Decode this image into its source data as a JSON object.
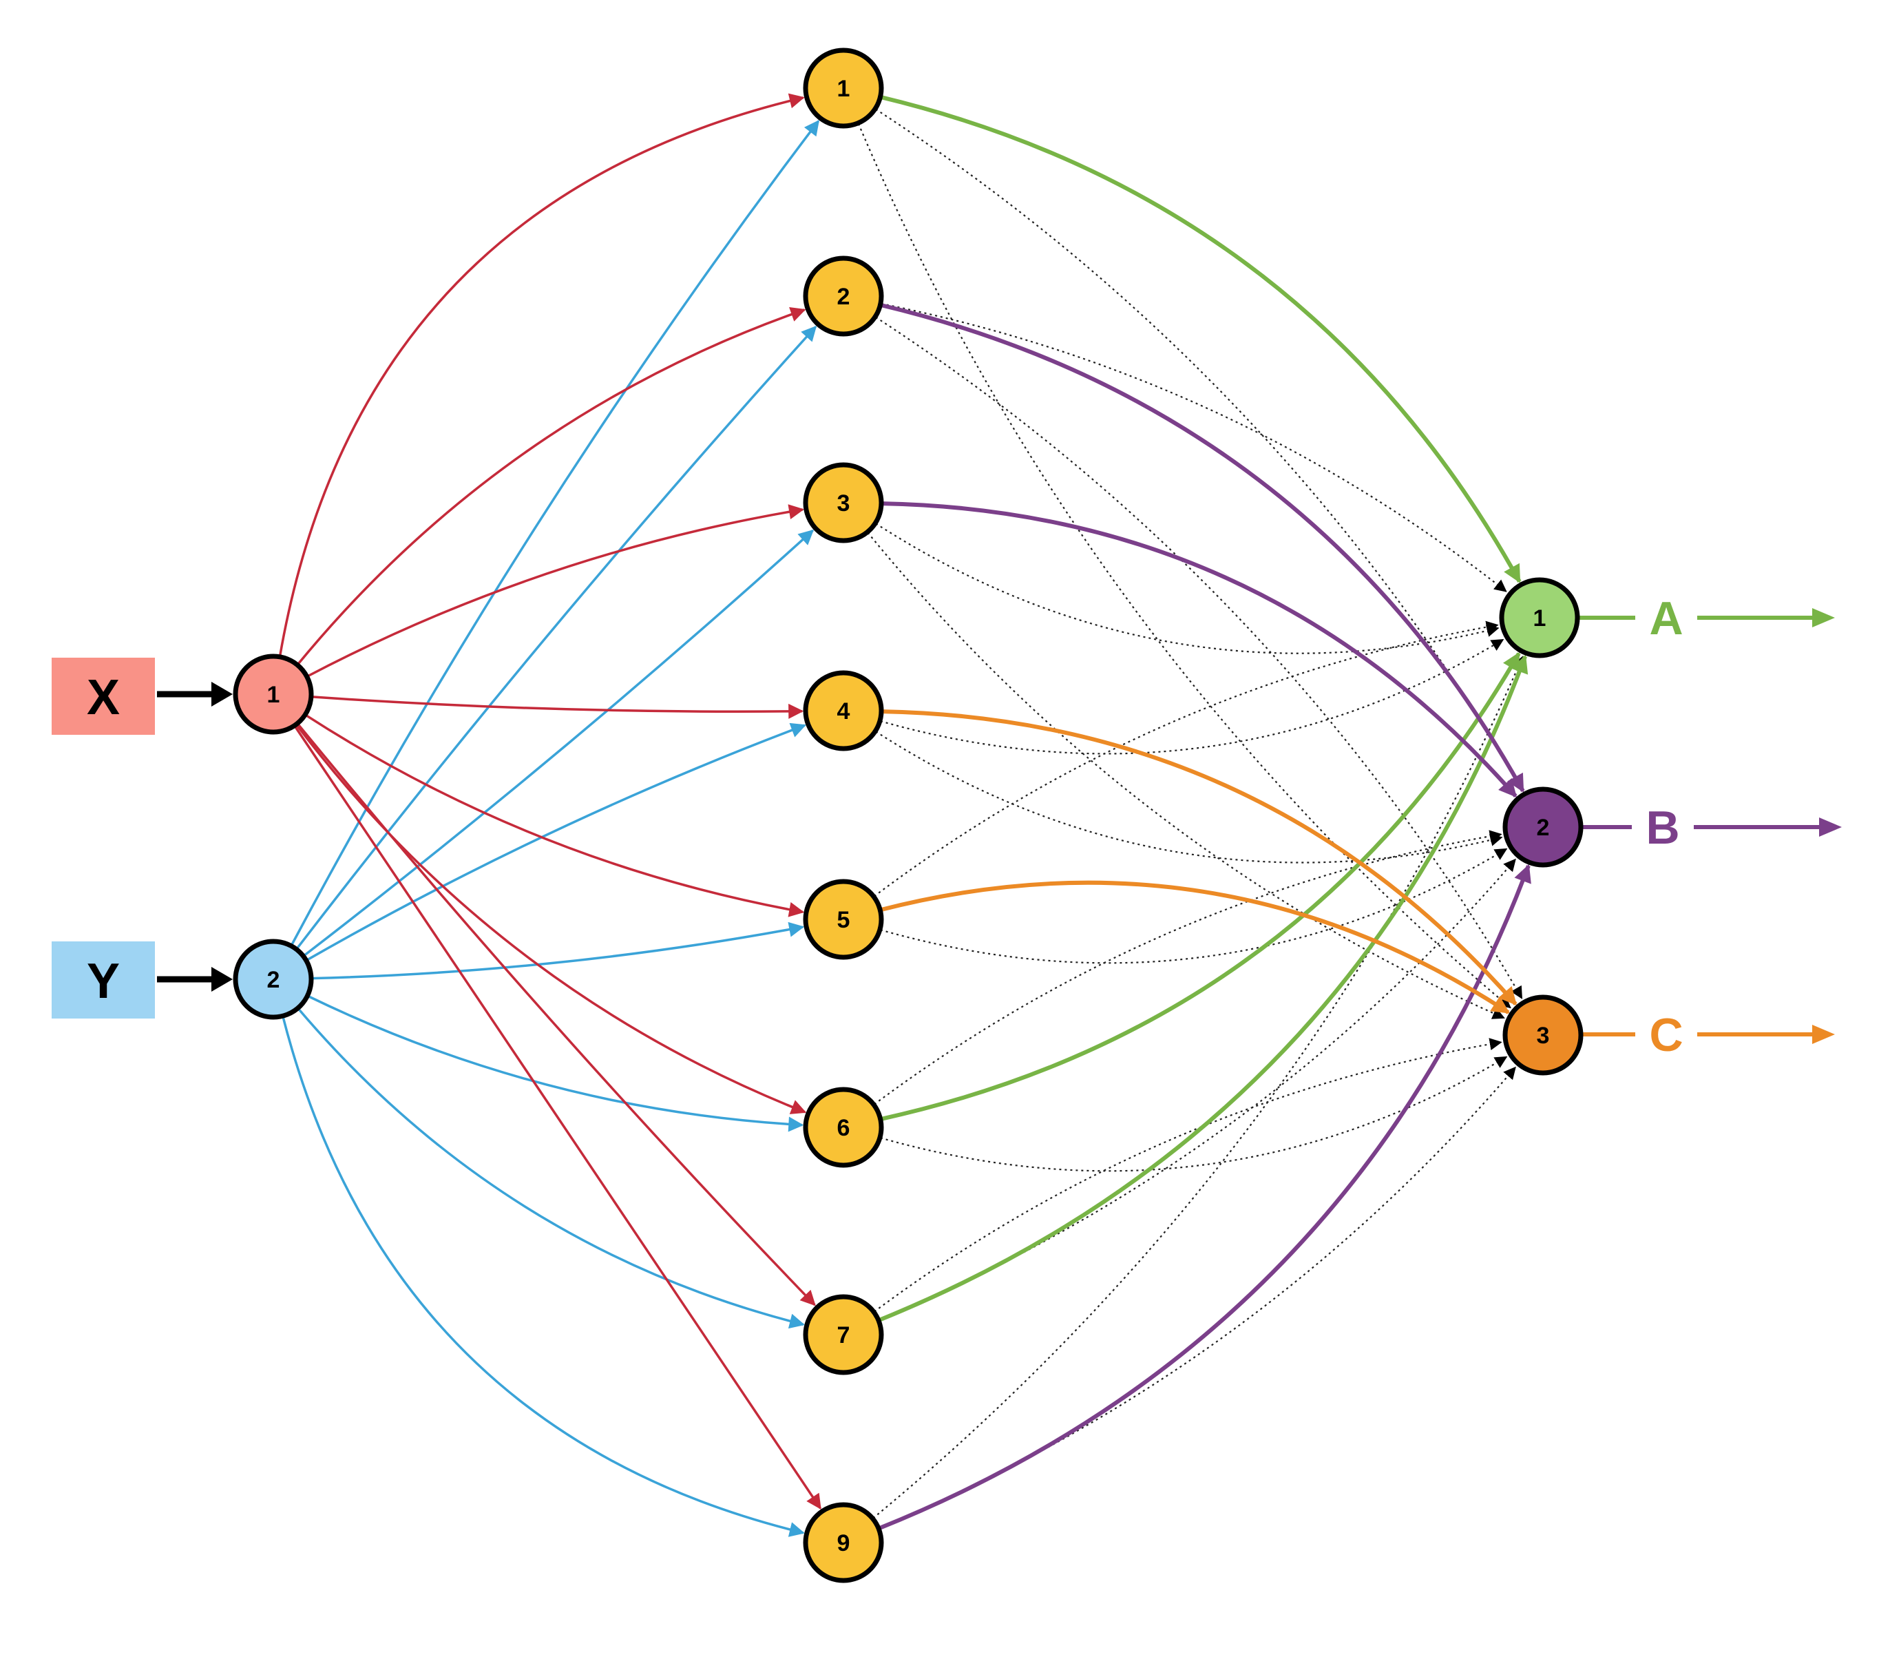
{
  "colors": {
    "input_x_fill": "#f99287",
    "input_y_fill": "#9ed4f3",
    "edge_x": "#c52a3a",
    "edge_y": "#3aa3d8",
    "hidden_fill": "#f9c235",
    "output_a": "#78b446",
    "output_a_fill": "#9dd574",
    "output_b": "#7b3f8a",
    "output_c": "#ec8a25",
    "dotted": "#222222",
    "node_stroke": "#000000"
  },
  "inputs": [
    {
      "id": "x",
      "label": "X",
      "node_label": "1"
    },
    {
      "id": "y",
      "label": "Y",
      "node_label": "2"
    }
  ],
  "hidden": [
    {
      "label": "1"
    },
    {
      "label": "2"
    },
    {
      "label": "3"
    },
    {
      "label": "4"
    },
    {
      "label": "5"
    },
    {
      "label": "6"
    },
    {
      "label": "7"
    },
    {
      "label": "9"
    }
  ],
  "outputs": [
    {
      "node_label": "1",
      "label": "A"
    },
    {
      "node_label": "2",
      "label": "B"
    },
    {
      "node_label": "3",
      "label": "C"
    }
  ],
  "strong_links": [
    {
      "from_hidden": 0,
      "to_output": 0
    },
    {
      "from_hidden": 5,
      "to_output": 0
    },
    {
      "from_hidden": 6,
      "to_output": 0
    },
    {
      "from_hidden": 1,
      "to_output": 1
    },
    {
      "from_hidden": 2,
      "to_output": 1
    },
    {
      "from_hidden": 7,
      "to_output": 1
    },
    {
      "from_hidden": 3,
      "to_output": 2
    },
    {
      "from_hidden": 4,
      "to_output": 2
    }
  ]
}
